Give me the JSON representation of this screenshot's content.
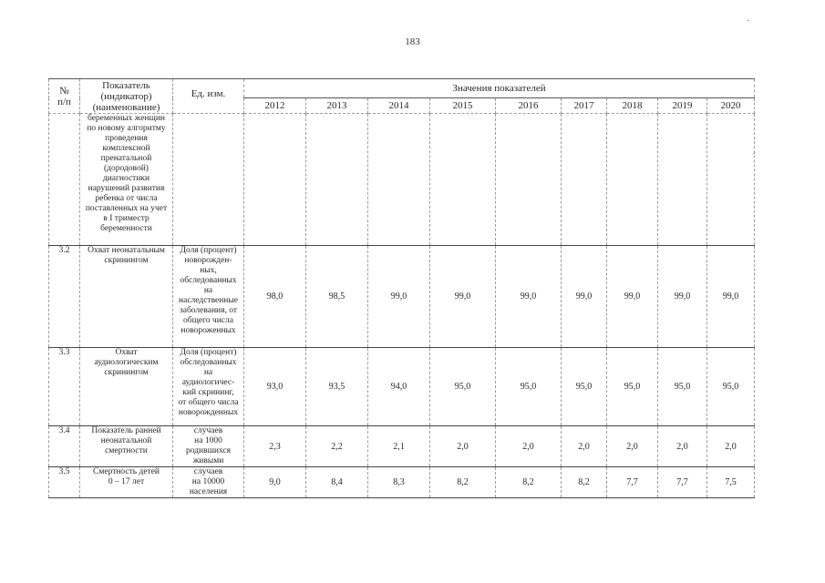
{
  "page_number": "183",
  "table": {
    "header": {
      "num": "№\nп/п",
      "indicator": "Показатель\n(индикатор)\n(наименование)",
      "unit": "Ед. изм.",
      "values_group": "Значения показателей",
      "years": [
        "2012",
        "2013",
        "2014",
        "2015",
        "2016",
        "2017",
        "2018",
        "2019",
        "2020"
      ]
    },
    "rows": [
      {
        "num": "",
        "indicator": "беременных женщин\nпо новому алгоритму\nпроведения\nкомплексной\nпренатальной\n(дородовой)\nдиагностики\nнарушений развития\nребенка от числа\nпоставленных на учет\nв I триместр\nбеременности",
        "unit": "",
        "values": [
          "",
          "",
          "",
          "",
          "",
          "",
          "",
          "",
          ""
        ]
      },
      {
        "num": "3.2",
        "indicator": "Охват неонатальным\nскринингом",
        "unit": "Доля (процент)\nноворожден-\nных,\nобследованных\nна\nнаследственные\nзаболевания, от\nобщего числа\nновороженных",
        "values": [
          "98,0",
          "98,5",
          "99,0",
          "99,0",
          "99,0",
          "99,0",
          "99,0",
          "99,0",
          "99,0"
        ]
      },
      {
        "num": "3.3",
        "indicator": "Охват\nаудиологическим\nскринингом",
        "unit": "Доля (процент)\nобследованных\nна\nаудиологичес-\nкий скрининг,\nот общего числа\nноворожденных",
        "values": [
          "93,0",
          "93,5",
          "94,0",
          "95,0",
          "95,0",
          "95,0",
          "95,0",
          "95,0",
          "95,0"
        ]
      },
      {
        "num": "3.4",
        "indicator": "Показатель ранней\nнеонатальной\nсмертности",
        "unit": "случаев\nна 1000\nродившихся\nживыми",
        "values": [
          "2,3",
          "2,2",
          "2,1",
          "2,0",
          "2,0",
          "2,0",
          "2,0",
          "2,0",
          "2,0"
        ]
      },
      {
        "num": "3.5",
        "indicator": "Смертность детей\n0 – 17 лет",
        "unit": "случаев\nна 10000\nнаселения",
        "values": [
          "9,0",
          "8,4",
          "8,3",
          "8,2",
          "8,2",
          "8,2",
          "7,7",
          "7,7",
          "7,5"
        ]
      }
    ]
  }
}
